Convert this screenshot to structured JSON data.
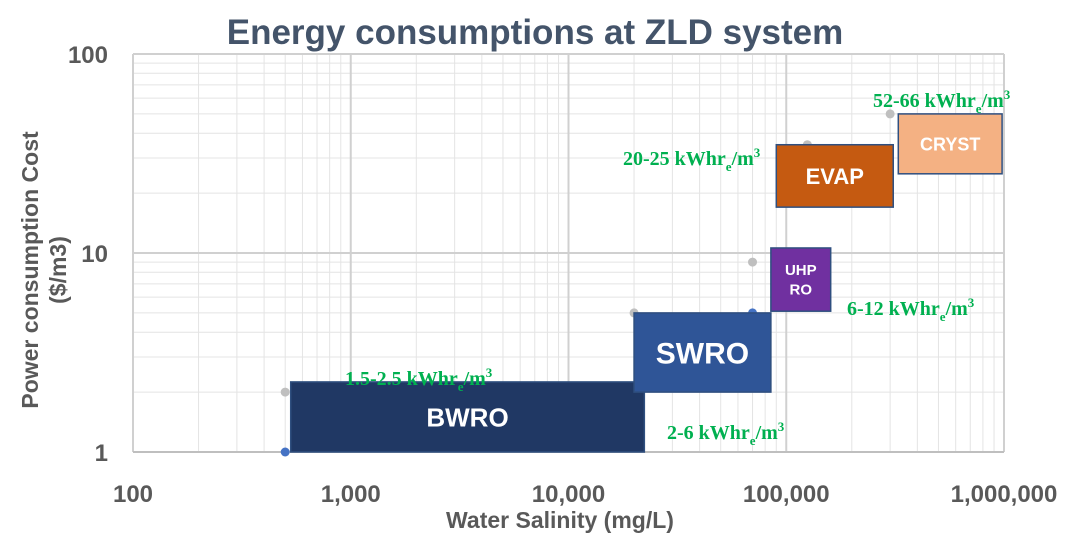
{
  "chart_data": {
    "type": "range-box",
    "title": "Energy consumptions at ZLD system",
    "x_label": "Water Salinity (mg/L)",
    "y_label": [
      "Power consumption Cost",
      "($/m3)"
    ],
    "x_log": true,
    "y_log": true,
    "grid": true,
    "minor_grid": true,
    "xlim": [
      100,
      1000000
    ],
    "xticks": [
      100,
      {
        "value": 1000,
        "label": "1,000"
      },
      {
        "value": 10000,
        "label": "10,000"
      },
      {
        "value": 100000,
        "label": "100,000"
      },
      {
        "value": 1000000,
        "label": "1,000,000"
      }
    ],
    "ylim": [
      1,
      100
    ],
    "yticks": [
      1,
      10,
      100
    ],
    "boxes": [
      {
        "label": [
          "BWRO"
        ],
        "x": [
          530,
          22300
        ],
        "y": [
          1,
          2.25
        ],
        "color": "#203864"
      },
      {
        "label": [
          "SWRO"
        ],
        "x": [
          20000,
          85000
        ],
        "y": [
          2,
          5
        ],
        "color": "#2f5597"
      },
      {
        "label": [
          "UHP",
          "RO"
        ],
        "x": [
          85000,
          160000
        ],
        "y": [
          5.1,
          10.6
        ],
        "color": "#7030a0"
      },
      {
        "label": [
          "EVAP"
        ],
        "x": [
          90000,
          310000
        ],
        "y": [
          17,
          35
        ],
        "color": "#c55a11"
      },
      {
        "label": [
          "CRYST"
        ],
        "x": [
          327000,
          980000
        ],
        "y": [
          25,
          50
        ],
        "color": "#f4b183"
      }
    ],
    "points": {
      "x": [
        500,
        500,
        20000,
        70000,
        70000,
        125000,
        300000
      ],
      "y": [
        1,
        2,
        5,
        5,
        9,
        35,
        50
      ],
      "colors": [
        "#4472c4",
        "#bfbfbf",
        "#bfbfbf",
        "#4472c4",
        "#bfbfbf",
        "#bfbfbf",
        "#bfbfbf"
      ]
    },
    "annotations": [
      {
        "text": "52-66 kWhr",
        "sub": "e",
        "mid": "/m",
        "sup": "3"
      },
      {
        "text": "20-25 kWhr",
        "sub": "e",
        "mid": "/m",
        "sup": "3"
      },
      {
        "text": "6-12 kWhr",
        "sub": "e",
        "mid": "/m",
        "sup": "3"
      },
      {
        "text": "1.5-2.5 kWhr",
        "sub": "e",
        "mid": "/m",
        "sup": "3"
      },
      {
        "text": "2-6 kWhr",
        "sub": "e",
        "mid": "/m",
        "sup": "3"
      }
    ],
    "annotation_color": "#00b050"
  }
}
